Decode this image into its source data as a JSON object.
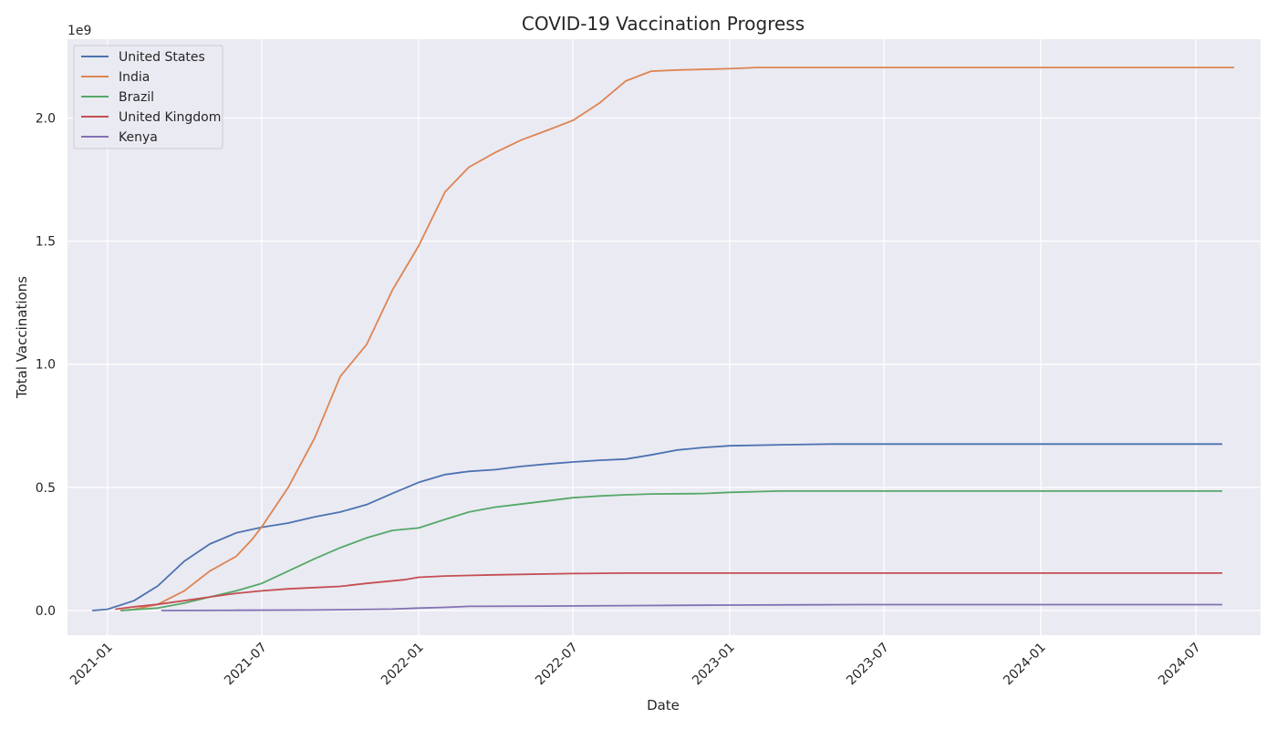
{
  "chart_data": {
    "type": "line",
    "title": "COVID-19 Vaccination Progress",
    "xlabel": "Date",
    "ylabel": "Total Vaccinations",
    "y_offset_label": "1e9",
    "xlim": [
      "2020-11-15",
      "2024-09-15"
    ],
    "ylim": [
      -0.1,
      2.32
    ],
    "x_ticks": [
      "2021-01",
      "2021-07",
      "2022-01",
      "2022-07",
      "2023-01",
      "2023-07",
      "2024-01",
      "2024-07"
    ],
    "y_ticks": [
      "0.0",
      "0.5",
      "1.0",
      "1.5",
      "2.0"
    ],
    "grid": true,
    "legend_position": "top-left",
    "series": [
      {
        "name": "United States",
        "color": "#4c72b0",
        "points": [
          [
            "2020-12-14",
            0.0
          ],
          [
            "2021-01-01",
            0.005
          ],
          [
            "2021-02-01",
            0.04
          ],
          [
            "2021-03-01",
            0.1
          ],
          [
            "2021-04-01",
            0.2
          ],
          [
            "2021-05-01",
            0.27
          ],
          [
            "2021-06-01",
            0.315
          ],
          [
            "2021-07-01",
            0.338
          ],
          [
            "2021-08-01",
            0.355
          ],
          [
            "2021-09-01",
            0.38
          ],
          [
            "2021-10-01",
            0.4
          ],
          [
            "2021-11-01",
            0.43
          ],
          [
            "2021-12-01",
            0.475
          ],
          [
            "2022-01-01",
            0.52
          ],
          [
            "2022-02-01",
            0.552
          ],
          [
            "2022-03-01",
            0.565
          ],
          [
            "2022-04-01",
            0.572
          ],
          [
            "2022-05-01",
            0.585
          ],
          [
            "2022-06-01",
            0.595
          ],
          [
            "2022-07-01",
            0.603
          ],
          [
            "2022-08-01",
            0.61
          ],
          [
            "2022-09-01",
            0.615
          ],
          [
            "2022-10-01",
            0.632
          ],
          [
            "2022-11-01",
            0.652
          ],
          [
            "2022-12-01",
            0.662
          ],
          [
            "2023-01-01",
            0.669
          ],
          [
            "2023-03-01",
            0.673
          ],
          [
            "2023-05-01",
            0.676
          ],
          [
            "2024-08-01",
            0.676
          ]
        ]
      },
      {
        "name": "India",
        "color": "#dd8452",
        "points": [
          [
            "2021-01-16",
            0.0
          ],
          [
            "2021-02-01",
            0.005
          ],
          [
            "2021-03-01",
            0.025
          ],
          [
            "2021-04-01",
            0.08
          ],
          [
            "2021-05-01",
            0.16
          ],
          [
            "2021-06-01",
            0.22
          ],
          [
            "2021-06-20",
            0.29
          ],
          [
            "2021-07-01",
            0.34
          ],
          [
            "2021-08-01",
            0.5
          ],
          [
            "2021-09-01",
            0.7
          ],
          [
            "2021-10-01",
            0.95
          ],
          [
            "2021-11-01",
            1.08
          ],
          [
            "2021-12-01",
            1.3
          ],
          [
            "2022-01-01",
            1.48
          ],
          [
            "2022-02-01",
            1.7
          ],
          [
            "2022-03-01",
            1.8
          ],
          [
            "2022-04-01",
            1.86
          ],
          [
            "2022-05-01",
            1.91
          ],
          [
            "2022-06-01",
            1.95
          ],
          [
            "2022-07-01",
            1.99
          ],
          [
            "2022-08-01",
            2.06
          ],
          [
            "2022-09-01",
            2.15
          ],
          [
            "2022-10-01",
            2.19
          ],
          [
            "2022-11-01",
            2.195
          ],
          [
            "2023-01-01",
            2.2
          ],
          [
            "2023-02-01",
            2.205
          ],
          [
            "2024-08-15",
            2.205
          ]
        ]
      },
      {
        "name": "Brazil",
        "color": "#55a868",
        "points": [
          [
            "2021-01-17",
            0.0
          ],
          [
            "2021-03-01",
            0.01
          ],
          [
            "2021-04-01",
            0.03
          ],
          [
            "2021-05-01",
            0.055
          ],
          [
            "2021-06-01",
            0.08
          ],
          [
            "2021-07-01",
            0.11
          ],
          [
            "2021-08-01",
            0.16
          ],
          [
            "2021-09-01",
            0.21
          ],
          [
            "2021-10-01",
            0.255
          ],
          [
            "2021-11-01",
            0.295
          ],
          [
            "2021-12-01",
            0.325
          ],
          [
            "2022-01-01",
            0.335
          ],
          [
            "2022-02-01",
            0.37
          ],
          [
            "2022-03-01",
            0.4
          ],
          [
            "2022-04-01",
            0.42
          ],
          [
            "2022-05-01",
            0.432
          ],
          [
            "2022-06-01",
            0.445
          ],
          [
            "2022-07-01",
            0.458
          ],
          [
            "2022-08-01",
            0.465
          ],
          [
            "2022-09-01",
            0.47
          ],
          [
            "2022-10-01",
            0.473
          ],
          [
            "2022-12-01",
            0.475
          ],
          [
            "2023-01-01",
            0.48
          ],
          [
            "2023-03-01",
            0.485
          ],
          [
            "2024-08-01",
            0.485
          ]
        ]
      },
      {
        "name": "United Kingdom",
        "color": "#c44e52",
        "points": [
          [
            "2021-01-10",
            0.005
          ],
          [
            "2021-02-01",
            0.015
          ],
          [
            "2021-03-01",
            0.025
          ],
          [
            "2021-04-01",
            0.04
          ],
          [
            "2021-05-01",
            0.055
          ],
          [
            "2021-06-01",
            0.07
          ],
          [
            "2021-07-01",
            0.08
          ],
          [
            "2021-08-01",
            0.088
          ],
          [
            "2021-09-01",
            0.093
          ],
          [
            "2021-10-01",
            0.098
          ],
          [
            "2021-11-01",
            0.11
          ],
          [
            "2021-12-15",
            0.125
          ],
          [
            "2022-01-01",
            0.135
          ],
          [
            "2022-02-01",
            0.14
          ],
          [
            "2022-04-01",
            0.145
          ],
          [
            "2022-07-01",
            0.15
          ],
          [
            "2022-09-01",
            0.152
          ],
          [
            "2024-08-01",
            0.152
          ]
        ]
      },
      {
        "name": "Kenya",
        "color": "#8172b3",
        "points": [
          [
            "2021-03-05",
            0.0
          ],
          [
            "2021-06-01",
            0.001
          ],
          [
            "2021-09-01",
            0.002
          ],
          [
            "2021-12-01",
            0.006
          ],
          [
            "2022-01-01",
            0.01
          ],
          [
            "2022-02-01",
            0.013
          ],
          [
            "2022-03-01",
            0.017
          ],
          [
            "2022-06-01",
            0.018
          ],
          [
            "2022-09-01",
            0.02
          ],
          [
            "2023-01-01",
            0.022
          ],
          [
            "2023-06-01",
            0.024
          ],
          [
            "2024-08-01",
            0.024
          ]
        ]
      }
    ]
  }
}
